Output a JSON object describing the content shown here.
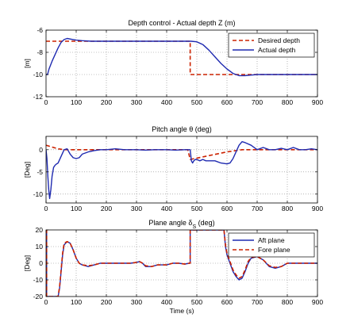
{
  "chart_data": [
    {
      "type": "line",
      "title": "Depth control - Actual depth Z (m)",
      "xlabel": "",
      "ylabel": "[m]",
      "xlim": [
        0,
        900
      ],
      "ylim": [
        -12,
        -6
      ],
      "xticks": [
        0,
        100,
        200,
        300,
        400,
        500,
        600,
        700,
        800,
        900
      ],
      "yticks": [
        -6,
        -8,
        -10,
        -12
      ],
      "grid": true,
      "legend": {
        "position": "top-right"
      },
      "series": [
        {
          "name": "Desired depth",
          "color": "#cc2200",
          "style": "dashed",
          "x": [
            0,
            478,
            478,
            900
          ],
          "y": [
            -7,
            -7,
            -10,
            -10
          ]
        },
        {
          "name": "Actual depth",
          "color": "#1f2ab0",
          "style": "solid",
          "x": [
            0,
            5,
            10,
            20,
            30,
            40,
            50,
            60,
            70,
            80,
            90,
            100,
            120,
            150,
            200,
            300,
            400,
            450,
            480,
            500,
            520,
            540,
            560,
            580,
            600,
            620,
            640,
            660,
            680,
            700,
            750,
            800,
            850,
            900
          ],
          "y": [
            -10,
            -10,
            -9.5,
            -8.8,
            -8.2,
            -7.6,
            -7.1,
            -6.85,
            -6.75,
            -6.8,
            -6.85,
            -6.9,
            -6.95,
            -7,
            -7,
            -7,
            -7,
            -7,
            -7,
            -7.05,
            -7.3,
            -7.8,
            -8.4,
            -9,
            -9.5,
            -9.9,
            -10.1,
            -10.1,
            -10.05,
            -10,
            -10,
            -10,
            -10,
            -10
          ]
        }
      ]
    },
    {
      "type": "line",
      "title": "Pitch angle θ (deg)",
      "xlabel": "",
      "ylabel": "[Deg]",
      "xlim": [
        0,
        900
      ],
      "ylim": [
        -12,
        3
      ],
      "xticks": [
        0,
        100,
        200,
        300,
        400,
        500,
        600,
        700,
        800,
        900
      ],
      "yticks": [
        0,
        -5,
        -10
      ],
      "grid": true,
      "series": [
        {
          "name": "",
          "color": "#cc2200",
          "style": "dashed",
          "x": [
            0,
            20,
            40,
            60,
            80,
            100,
            150,
            200,
            300,
            400,
            470,
            478,
            500,
            550,
            600,
            650,
            700,
            750,
            800,
            900
          ],
          "y": [
            1,
            0.6,
            0.2,
            0,
            0,
            0,
            0,
            0,
            0,
            0,
            0,
            -2.2,
            -1.9,
            -1.2,
            -0.5,
            0,
            0,
            0,
            0,
            0
          ]
        },
        {
          "name": "",
          "color": "#1f2ab0",
          "style": "solid",
          "x": [
            0,
            3,
            6,
            9,
            12,
            16,
            20,
            25,
            30,
            35,
            40,
            50,
            60,
            70,
            80,
            90,
            100,
            110,
            120,
            140,
            160,
            180,
            200,
            230,
            260,
            300,
            330,
            360,
            400,
            430,
            460,
            478,
            482,
            486,
            490,
            495,
            500,
            510,
            520,
            530,
            540,
            560,
            580,
            600,
            610,
            620,
            630,
            640,
            650,
            660,
            680,
            700,
            720,
            740,
            760,
            780,
            800,
            820,
            840,
            860,
            880,
            900
          ],
          "y": [
            0,
            -2,
            -6,
            -9,
            -11,
            -9,
            -6,
            -4,
            -3.5,
            -3.2,
            -3,
            -1.5,
            0,
            0.2,
            -1,
            -1.8,
            -2,
            -1.8,
            -1,
            -0.5,
            -0.2,
            0,
            0,
            0.2,
            0,
            0,
            -0.1,
            0,
            0,
            -0.1,
            0,
            0,
            -2.5,
            -3,
            -2.5,
            -2.2,
            -2.2,
            -2.5,
            -2.2,
            -2.5,
            -2.5,
            -2.5,
            -3,
            -3.2,
            -3,
            -2,
            -0.5,
            1,
            1.8,
            1.6,
            1,
            0,
            0.5,
            0,
            0,
            0.3,
            0,
            0.5,
            0,
            0,
            0.2,
            0
          ]
        }
      ]
    },
    {
      "type": "line",
      "title": "Plane angle δ",
      "title_subscript": "S",
      "title_suffix": " (deg)",
      "xlabel": "Time (s)",
      "ylabel": "[Deg]",
      "xlim": [
        0,
        900
      ],
      "ylim": [
        -20,
        20
      ],
      "xticks": [
        0,
        100,
        200,
        300,
        400,
        500,
        600,
        700,
        800,
        900
      ],
      "yticks": [
        20,
        10,
        0,
        -10,
        -20
      ],
      "grid": true,
      "legend": {
        "position": "top-right"
      },
      "series": [
        {
          "name": "Aft plane",
          "color": "#1f2ab0",
          "style": "solid",
          "x": [
            0,
            2,
            2,
            40,
            45,
            50,
            55,
            60,
            70,
            80,
            90,
            100,
            110,
            120,
            140,
            160,
            180,
            200,
            250,
            280,
            300,
            310,
            320,
            330,
            350,
            370,
            400,
            420,
            440,
            460,
            475,
            478,
            478,
            480,
            590,
            595,
            600,
            610,
            620,
            630,
            640,
            650,
            660,
            670,
            680,
            700,
            720,
            740,
            760,
            780,
            800,
            850,
            900
          ],
          "y": [
            20,
            20,
            -20,
            -20,
            -15,
            -5,
            5,
            11,
            13,
            12,
            8,
            3,
            0,
            -1,
            -2,
            -1,
            0,
            0,
            0,
            0,
            0.5,
            1,
            0,
            -2,
            -2,
            -1,
            -1,
            0,
            0,
            -0.5,
            0,
            0,
            20,
            20,
            20,
            10,
            5,
            0,
            -5,
            -8,
            -10,
            -9,
            -5,
            0,
            3,
            4,
            2,
            -2,
            -3,
            -2,
            0,
            0,
            0
          ]
        },
        {
          "name": "Fore plane",
          "color": "#cc2200",
          "style": "dashed",
          "x": [
            0,
            2,
            2,
            40,
            45,
            50,
            55,
            60,
            70,
            80,
            90,
            100,
            110,
            120,
            140,
            160,
            180,
            200,
            250,
            280,
            300,
            310,
            320,
            330,
            350,
            370,
            400,
            420,
            440,
            460,
            475,
            478,
            478,
            480,
            590,
            595,
            600,
            610,
            620,
            630,
            640,
            650,
            660,
            670,
            680,
            700,
            720,
            740,
            760,
            780,
            800,
            850,
            900
          ],
          "y": [
            20,
            20,
            -20,
            -20,
            -14,
            -4,
            6,
            12,
            13,
            12,
            8,
            3,
            0,
            -1,
            -1.5,
            -1,
            0,
            0,
            0,
            0,
            0.5,
            1,
            0,
            -1.5,
            -2,
            -1,
            -1,
            0,
            0,
            -0.5,
            0,
            0,
            20,
            20,
            20,
            11,
            6,
            1,
            -4,
            -7,
            -9,
            -8,
            -4,
            1,
            3.5,
            4,
            2,
            -1.5,
            -2.5,
            -2,
            0,
            0,
            0
          ]
        }
      ]
    }
  ]
}
